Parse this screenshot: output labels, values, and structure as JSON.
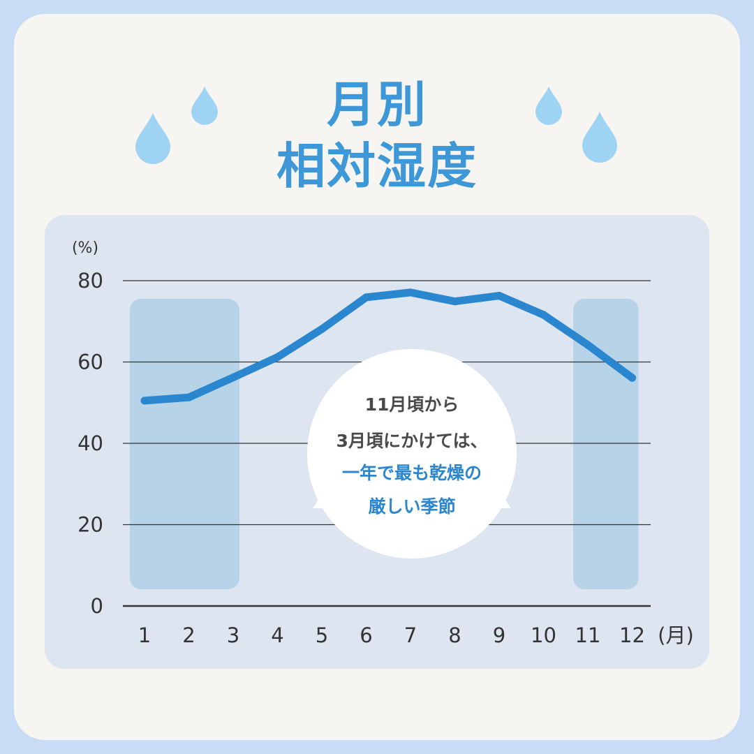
{
  "title": {
    "line1": "月別",
    "line2": "相対湿度"
  },
  "callout": {
    "line1": "11月頃から",
    "line2": "3月頃にかけては、",
    "line3": "一年で最も乾燥の",
    "line4": "厳しい季節"
  },
  "colors": {
    "background": "#c9dcf5",
    "card": "#f6f5f1",
    "panel": "#dde6f0",
    "title": "#3e97d6",
    "line": "#2a86cf",
    "highlight": "#b6d3e8",
    "drop": "#9ed3f3",
    "callout_text": "#4a4a4a",
    "callout_accent": "#2a86cf"
  },
  "icons": [
    "water-drop-icon",
    "water-drop-icon",
    "water-drop-icon",
    "water-drop-icon"
  ],
  "chart_data": {
    "type": "line",
    "y_unit": "(%)",
    "x_unit": "(月)",
    "categories": [
      "1",
      "2",
      "3",
      "4",
      "5",
      "6",
      "7",
      "8",
      "9",
      "10",
      "11",
      "12"
    ],
    "series": [
      {
        "values": [
          50.5,
          51.3,
          56.2,
          61.2,
          68.1,
          75.9,
          77.1,
          74.9,
          76.3,
          71.6,
          64.2,
          56.1
        ]
      }
    ],
    "ylim": [
      0,
      80
    ],
    "yticks": [
      "0",
      "20",
      "40",
      "60",
      "80"
    ],
    "grid": true,
    "highlighted_months": [
      [
        "1",
        "3"
      ],
      [
        "11",
        "12"
      ]
    ]
  }
}
